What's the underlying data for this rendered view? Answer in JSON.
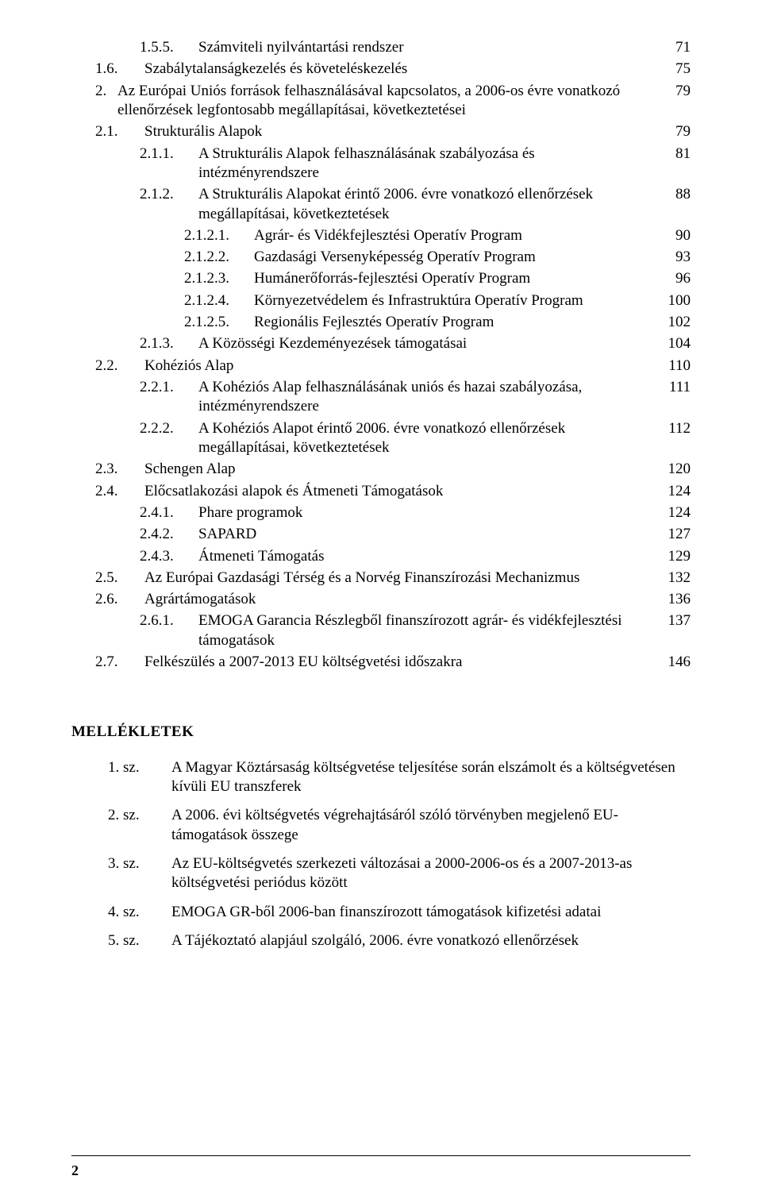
{
  "doc": {
    "text_color": "#000000",
    "background": "#ffffff",
    "font_family": "Book Antiqua / Palatino serif",
    "base_font_size_pt": 14,
    "page_number": "2"
  },
  "toc": [
    {
      "indent": 2,
      "numw": "w2",
      "num": "1.5.5.",
      "title": "Számviteli nyilvántartási rendszer",
      "page": "71"
    },
    {
      "indent": 1,
      "numw": "w1",
      "num": "1.6.",
      "title": "Szabálytalanságkezelés és követeléskezelés",
      "page": "75"
    },
    {
      "indent": 0,
      "numw": "w4",
      "num": "2.",
      "title": "Az Európai Uniós források felhasználásával kapcsolatos, a 2006-os évre vonatkozó ellenőrzések legfontosabb megállapításai, következtetései",
      "page": "79"
    },
    {
      "indent": 1,
      "numw": "w1",
      "num": "2.1.",
      "title": "Strukturális Alapok",
      "page": "79"
    },
    {
      "indent": 2,
      "numw": "w2",
      "num": "2.1.1.",
      "title": "A Strukturális Alapok felhasználásának szabályozása és intézményrendszere",
      "page": "81"
    },
    {
      "indent": 2,
      "numw": "w2",
      "num": "2.1.2.",
      "title": "A Strukturális Alapokat érintő 2006. évre vonatkozó ellenőrzések megállapításai, következtetések",
      "page": "88"
    },
    {
      "indent": 3,
      "numw": "w3",
      "num": "2.1.2.1.",
      "title": "Agrár- és Vidékfejlesztési Operatív Program",
      "page": "90"
    },
    {
      "indent": 3,
      "numw": "w3",
      "num": "2.1.2.2.",
      "title": "Gazdasági Versenyképesség Operatív Program",
      "page": "93"
    },
    {
      "indent": 3,
      "numw": "w3",
      "num": "2.1.2.3.",
      "title": "Humánerőforrás-fejlesztési Operatív Program",
      "page": "96"
    },
    {
      "indent": 3,
      "numw": "w3",
      "num": "2.1.2.4.",
      "title": "Környezetvédelem és Infrastruktúra Operatív Program",
      "page": "100"
    },
    {
      "indent": 3,
      "numw": "w3",
      "num": "2.1.2.5.",
      "title": "Regionális Fejlesztés Operatív Program",
      "page": "102"
    },
    {
      "indent": 2,
      "numw": "w2",
      "num": "2.1.3.",
      "title": "A Közösségi Kezdeményezések támogatásai",
      "page": "104"
    },
    {
      "indent": 1,
      "numw": "w1",
      "num": "2.2.",
      "title": "Kohéziós Alap",
      "page": "110"
    },
    {
      "indent": 2,
      "numw": "w2",
      "num": "2.2.1.",
      "title": "A Kohéziós Alap felhasználásának uniós és hazai szabályozása, intézményrendszere",
      "page": "111"
    },
    {
      "indent": 2,
      "numw": "w2",
      "num": "2.2.2.",
      "title": "A Kohéziós Alapot érintő 2006. évre vonatkozó ellenőrzések megállapításai, következtetések",
      "page": "112"
    },
    {
      "indent": 1,
      "numw": "w1",
      "num": "2.3.",
      "title": "Schengen Alap",
      "page": "120"
    },
    {
      "indent": 1,
      "numw": "w1",
      "num": "2.4.",
      "title": "Előcsatlakozási alapok és Átmeneti Támogatások",
      "page": "124"
    },
    {
      "indent": 2,
      "numw": "w2",
      "num": "2.4.1.",
      "title": "Phare programok",
      "page": "124"
    },
    {
      "indent": 2,
      "numw": "w2",
      "num": "2.4.2.",
      "title": "SAPARD",
      "page": "127"
    },
    {
      "indent": 2,
      "numw": "w2",
      "num": "2.4.3.",
      "title": "Átmeneti Támogatás",
      "page": "129"
    },
    {
      "indent": 1,
      "numw": "w1",
      "num": "2.5.",
      "title": "Az Európai Gazdasági Térség és a Norvég Finanszírozási Mechanizmus",
      "page": "132"
    },
    {
      "indent": 1,
      "numw": "w1",
      "num": "2.6.",
      "title": "Agrártámogatások",
      "page": "136"
    },
    {
      "indent": 2,
      "numw": "w2",
      "num": "2.6.1.",
      "title": "EMOGA Garancia Részlegből finanszírozott agrár- és vidékfejlesztési támogatások",
      "page": "137"
    },
    {
      "indent": 1,
      "numw": "w1",
      "num": "2.7.",
      "title": "Felkészülés a 2007-2013 EU költségvetési időszakra",
      "page": "146"
    }
  ],
  "appendix": {
    "heading": "MELLÉKLETEK",
    "items": [
      {
        "num": "1. sz.",
        "text": "A Magyar Köztársaság költségvetése teljesítése során elszámolt és a költségvetésen kívüli EU transzferek"
      },
      {
        "num": "2. sz.",
        "text": "A 2006. évi költségvetés végrehajtásáról szóló törvényben megjelenő EU-támogatások összege"
      },
      {
        "num": "3. sz.",
        "text": "Az EU-költségvetés szerkezeti változásai a 2000-2006-os és a 2007-2013-as költségvetési periódus között"
      },
      {
        "num": "4. sz.",
        "text": "EMOGA GR-ből 2006-ban finanszírozott támogatások kifizetési adatai"
      },
      {
        "num": "5. sz.",
        "text": "A Tájékoztató alapjául szolgáló, 2006. évre vonatkozó ellenőrzések"
      }
    ]
  }
}
